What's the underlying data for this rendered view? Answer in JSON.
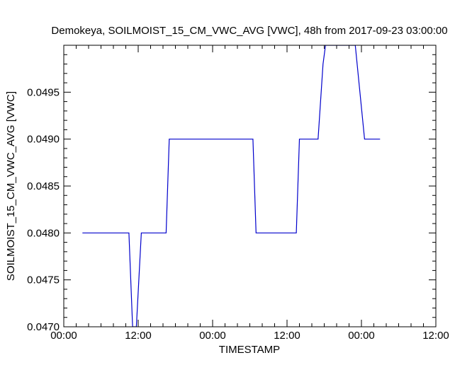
{
  "chart_data": {
    "type": "line",
    "title": "Demokeya, SOILMOIST_15_CM_VWC_AVG [VWC], 48h from  2017-09-23 03:00:00",
    "xlabel": "TIMESTAMP",
    "ylabel": "SOILMOIST_15_CM_VWC_AVG [VWC]",
    "x_tick_labels": [
      "00:00",
      "12:00",
      "00:00",
      "12:00",
      "00:00",
      "12:00"
    ],
    "y_tick_labels": [
      "0.0470",
      "0.0475",
      "0.0480",
      "0.0485",
      "0.0490",
      "0.0495"
    ],
    "xlim_hours": [
      0,
      60
    ],
    "ylim": [
      0.047,
      0.05
    ],
    "grid": false,
    "line_color": "#0000cc",
    "series": [
      {
        "x_hours": [
          3.0,
          10.5,
          11.1,
          11.7,
          12.5,
          16.5,
          17.0,
          30.5,
          31.0,
          37.5,
          38.0,
          41.0,
          41.8,
          42.2,
          47.0,
          48.5,
          51.0
        ],
        "values": [
          0.048,
          0.048,
          0.047,
          0.047,
          0.048,
          0.048,
          0.049,
          0.049,
          0.048,
          0.048,
          0.049,
          0.049,
          0.0498,
          0.05,
          0.05,
          0.049,
          0.049
        ]
      }
    ]
  }
}
